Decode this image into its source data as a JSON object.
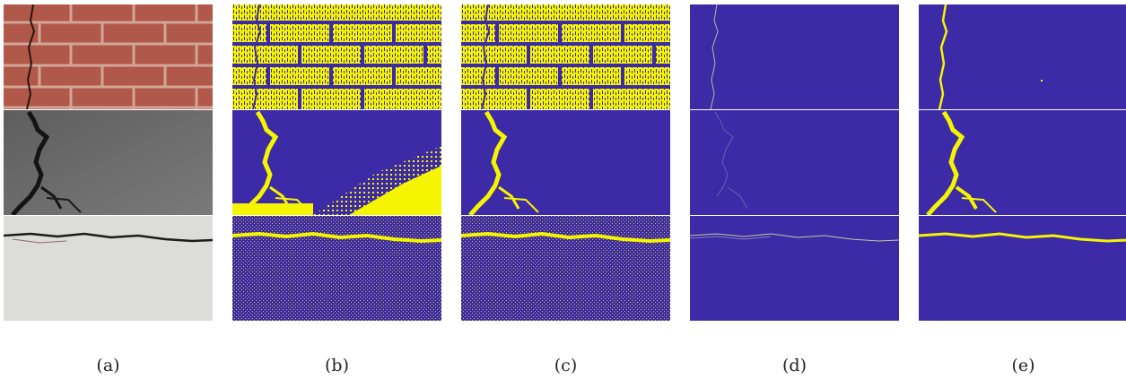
{
  "figure": {
    "panels": [
      {
        "id": "a",
        "label": "(a)",
        "kind": "input",
        "rows": [
          "brick-wall-crack",
          "gray-wall-crack",
          "white-plaster-crack"
        ]
      },
      {
        "id": "b",
        "label": "(b)",
        "kind": "noisy-segmentation"
      },
      {
        "id": "c",
        "label": "(c)",
        "kind": "noisy-segmentation"
      },
      {
        "id": "d",
        "label": "(d)",
        "kind": "thin-edge-map"
      },
      {
        "id": "e",
        "label": "(e)",
        "kind": "clean-crack-mask"
      }
    ],
    "colors": {
      "background_blue": "#3d2aa6",
      "foreground_yellow": "#f5f500",
      "brick": "#b0584a",
      "mortar": "#cfa08f",
      "gray_wall": "#6c6c6c",
      "plaster": "#dcdcd8"
    }
  }
}
